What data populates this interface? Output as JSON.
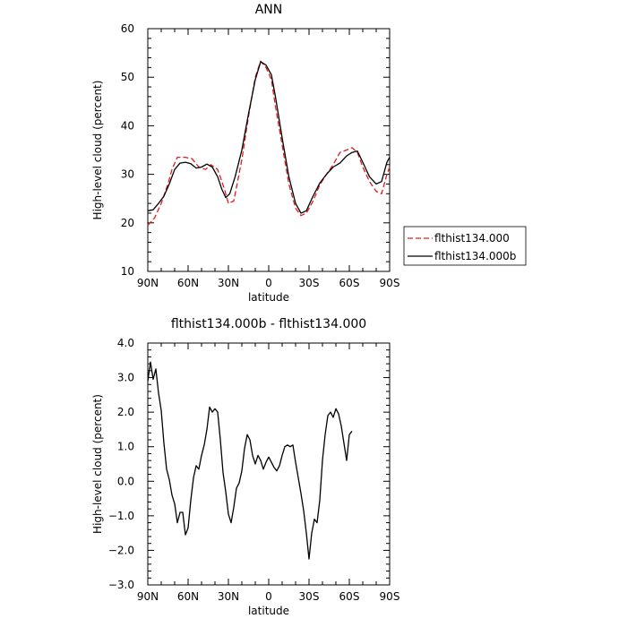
{
  "chart_data": [
    {
      "type": "line",
      "title": "ANN",
      "xlabel": "latitude",
      "ylabel": "High-level cloud (percent)",
      "xlim": [
        90,
        -90
      ],
      "ylim": [
        10,
        60
      ],
      "x_tick_labels": [
        "90N",
        "60N",
        "30N",
        "0",
        "30S",
        "60S",
        "90S"
      ],
      "y_tick_labels": [
        "10",
        "20",
        "30",
        "40",
        "50",
        "60"
      ],
      "legend": {
        "placement": "right",
        "entries": [
          "flthist134.000",
          "flthist134.000b"
        ]
      },
      "series": [
        {
          "name": "flthist134.000",
          "color": "#e41a1c",
          "style": "dashed",
          "points": [
            [
              90,
              19.5
            ],
            [
              85,
              21
            ],
            [
              80,
              24
            ],
            [
              75,
              28
            ],
            [
              72,
              31
            ],
            [
              68,
              33.5
            ],
            [
              62,
              33.5
            ],
            [
              57,
              33.2
            ],
            [
              52,
              31.5
            ],
            [
              47,
              31
            ],
            [
              43,
              32
            ],
            [
              38,
              31
            ],
            [
              33,
              27
            ],
            [
              30,
              24
            ],
            [
              26,
              24.5
            ],
            [
              20,
              33
            ],
            [
              15,
              42
            ],
            [
              10,
              50
            ],
            [
              6,
              53.3
            ],
            [
              2,
              52
            ],
            [
              -2,
              49.5
            ],
            [
              -5,
              44
            ],
            [
              -10,
              36
            ],
            [
              -15,
              28
            ],
            [
              -20,
              23
            ],
            [
              -24,
              21.5
            ],
            [
              -28,
              22
            ],
            [
              -33,
              24.5
            ],
            [
              -38,
              27.8
            ],
            [
              -43,
              30
            ],
            [
              -48,
              32
            ],
            [
              -53,
              34.5
            ],
            [
              -58,
              35
            ],
            [
              -62,
              35.5
            ],
            [
              -66,
              34.5
            ],
            [
              -70,
              31.5
            ],
            [
              -75,
              28.5
            ],
            [
              -80,
              26.5
            ],
            [
              -84,
              26
            ],
            [
              -88,
              30
            ],
            [
              -90,
              31.5
            ]
          ]
        },
        {
          "name": "flthist134.000b",
          "color": "#000000",
          "style": "solid",
          "points": [
            [
              90,
              22.5
            ],
            [
              86,
              22.7
            ],
            [
              82,
              24
            ],
            [
              78,
              25.5
            ],
            [
              74,
              28
            ],
            [
              70,
              31
            ],
            [
              66,
              32.3
            ],
            [
              62,
              32.5
            ],
            [
              58,
              32.2
            ],
            [
              54,
              31.3
            ],
            [
              50,
              31.5
            ],
            [
              46,
              32.1
            ],
            [
              42,
              31.5
            ],
            [
              38,
              29.5
            ],
            [
              35,
              27
            ],
            [
              32,
              25.2
            ],
            [
              29,
              26
            ],
            [
              25,
              29.5
            ],
            [
              20,
              35
            ],
            [
              15,
              42.5
            ],
            [
              10,
              49.5
            ],
            [
              6,
              53.2
            ],
            [
              2,
              52.5
            ],
            [
              -2,
              50.5
            ],
            [
              -5,
              46
            ],
            [
              -10,
              37.5
            ],
            [
              -15,
              29.5
            ],
            [
              -20,
              24
            ],
            [
              -24,
              22
            ],
            [
              -28,
              22.5
            ],
            [
              -33,
              25.5
            ],
            [
              -38,
              28.2
            ],
            [
              -43,
              30
            ],
            [
              -48,
              31.5
            ],
            [
              -53,
              32.3
            ],
            [
              -58,
              33.8
            ],
            [
              -62,
              34.5
            ],
            [
              -66,
              34.8
            ],
            [
              -70,
              32.5
            ],
            [
              -75,
              29.5
            ],
            [
              -80,
              28
            ],
            [
              -84,
              28.5
            ],
            [
              -88,
              32.5
            ],
            [
              -90,
              33.5
            ]
          ]
        }
      ]
    },
    {
      "type": "line",
      "title": "flthist134.000b - flthist134.000",
      "xlabel": "latitude",
      "ylabel": "High-level cloud (percent)",
      "xlim": [
        90,
        -90
      ],
      "ylim": [
        -3,
        4
      ],
      "x_tick_labels": [
        "90N",
        "60N",
        "30N",
        "0",
        "30S",
        "60S",
        "90S"
      ],
      "y_tick_labels": [
        "−3.0",
        "−2.0",
        "−1.0",
        "0.0",
        "1.0",
        "2.0",
        "3.0",
        "4.0"
      ],
      "series": [
        {
          "color": "#000000",
          "style": "solid",
          "points": [
            [
              90,
              2.9
            ],
            [
              88,
              3.45
            ],
            [
              86,
              2.95
            ],
            [
              84,
              3.25
            ],
            [
              82,
              2.55
            ],
            [
              80,
              2.05
            ],
            [
              78,
              1.1
            ],
            [
              76,
              0.35
            ],
            [
              74,
              0.05
            ],
            [
              72,
              -0.4
            ],
            [
              70,
              -0.65
            ],
            [
              68,
              -1.2
            ],
            [
              66,
              -0.9
            ],
            [
              64,
              -0.9
            ],
            [
              62,
              -1.55
            ],
            [
              60,
              -1.35
            ],
            [
              58,
              -0.55
            ],
            [
              56,
              0.1
            ],
            [
              54,
              0.45
            ],
            [
              52,
              0.35
            ],
            [
              50,
              0.75
            ],
            [
              48,
              1.05
            ],
            [
              46,
              1.5
            ],
            [
              44,
              2.15
            ],
            [
              42,
              2.0
            ],
            [
              40,
              2.1
            ],
            [
              38,
              2.0
            ],
            [
              36,
              1.2
            ],
            [
              34,
              0.25
            ],
            [
              32,
              -0.3
            ],
            [
              30,
              -0.95
            ],
            [
              28,
              -1.2
            ],
            [
              26,
              -0.75
            ],
            [
              24,
              -0.2
            ],
            [
              22,
              -0.05
            ],
            [
              20,
              0.3
            ],
            [
              18,
              0.95
            ],
            [
              16,
              1.35
            ],
            [
              14,
              1.2
            ],
            [
              12,
              0.75
            ],
            [
              10,
              0.5
            ],
            [
              8,
              0.75
            ],
            [
              6,
              0.6
            ],
            [
              4,
              0.35
            ],
            [
              2,
              0.55
            ],
            [
              0,
              0.7
            ],
            [
              -2,
              0.55
            ],
            [
              -4,
              0.4
            ],
            [
              -6,
              0.3
            ],
            [
              -8,
              0.45
            ],
            [
              -10,
              0.75
            ],
            [
              -12,
              1.0
            ],
            [
              -14,
              1.05
            ],
            [
              -16,
              1.0
            ],
            [
              -18,
              1.05
            ],
            [
              -20,
              0.55
            ],
            [
              -22,
              0.1
            ],
            [
              -24,
              -0.35
            ],
            [
              -26,
              -0.85
            ],
            [
              -28,
              -1.5
            ],
            [
              -30,
              -2.25
            ],
            [
              -32,
              -1.5
            ],
            [
              -34,
              -1.1
            ],
            [
              -36,
              -1.2
            ],
            [
              -38,
              -0.55
            ],
            [
              -40,
              0.6
            ],
            [
              -42,
              1.35
            ],
            [
              -44,
              1.9
            ],
            [
              -46,
              2.0
            ],
            [
              -48,
              1.85
            ],
            [
              -50,
              2.1
            ],
            [
              -52,
              1.95
            ],
            [
              -54,
              1.6
            ],
            [
              -56,
              1.1
            ],
            [
              -58,
              0.6
            ],
            [
              -60,
              1.35
            ],
            [
              -62,
              1.45
            ]
          ]
        }
      ]
    }
  ]
}
